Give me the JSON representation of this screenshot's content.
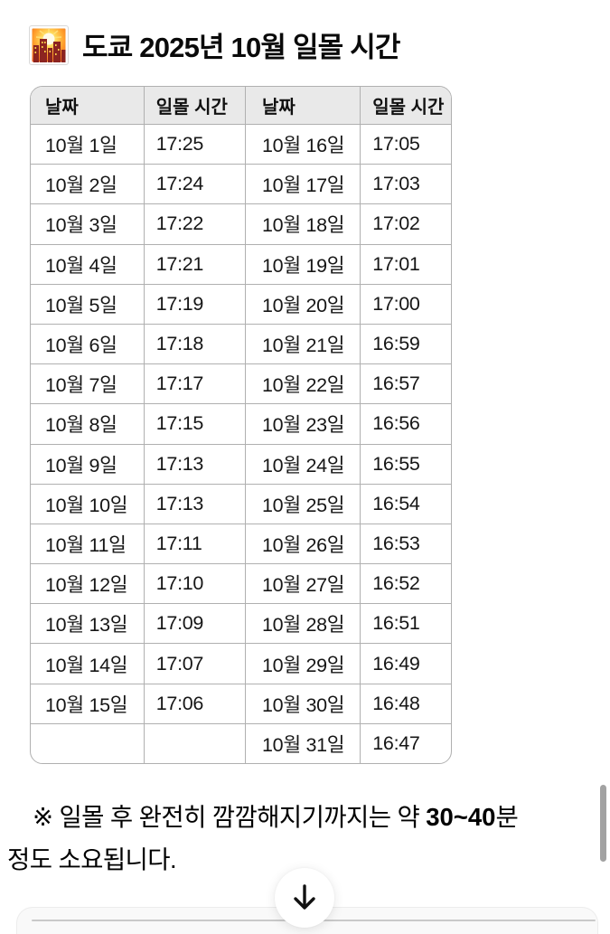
{
  "header": {
    "title": "도쿄 2025년 10월 일몰 시간",
    "emoji": "sunset-over-buildings"
  },
  "table": {
    "headers": [
      "날짜",
      "일몰 시간",
      "날짜",
      "일몰 시간"
    ],
    "rows": [
      [
        "10월 1일",
        "17:25",
        "10월 16일",
        "17:05"
      ],
      [
        "10월 2일",
        "17:24",
        "10월 17일",
        "17:03"
      ],
      [
        "10월 3일",
        "17:22",
        "10월 18일",
        "17:02"
      ],
      [
        "10월 4일",
        "17:21",
        "10월 19일",
        "17:01"
      ],
      [
        "10월 5일",
        "17:19",
        "10월 20일",
        "17:00"
      ],
      [
        "10월 6일",
        "17:18",
        "10월 21일",
        "16:59"
      ],
      [
        "10월 7일",
        "17:17",
        "10월 22일",
        "16:57"
      ],
      [
        "10월 8일",
        "17:15",
        "10월 23일",
        "16:56"
      ],
      [
        "10월 9일",
        "17:13",
        "10월 24일",
        "16:55"
      ],
      [
        "10월 10일",
        "17:13",
        "10월 25일",
        "16:54"
      ],
      [
        "10월 11일",
        "17:11",
        "10월 26일",
        "16:53"
      ],
      [
        "10월 12일",
        "17:10",
        "10월 27일",
        "16:52"
      ],
      [
        "10월 13일",
        "17:09",
        "10월 28일",
        "16:51"
      ],
      [
        "10월 14일",
        "17:07",
        "10월 29일",
        "16:49"
      ],
      [
        "10월 15일",
        "17:06",
        "10월 30일",
        "16:48"
      ],
      [
        "",
        "",
        "10월 31일",
        "16:47"
      ]
    ],
    "header_bg": "#e9e9e9",
    "border_color": "#b0b0b0"
  },
  "note": {
    "line1_prefix": "※ 일몰 후 완전히 깜깜해지기까지는 약 ",
    "line1_bold": "30~40",
    "line1_suffix": "분",
    "line2": "정도 소요됩니다."
  },
  "scroll_button": {
    "icon": "arrow-down"
  },
  "colors": {
    "scrollbar": "#a2a2a2",
    "header_bg": "#e9e9e9",
    "table_border": "#b0b0b0"
  }
}
